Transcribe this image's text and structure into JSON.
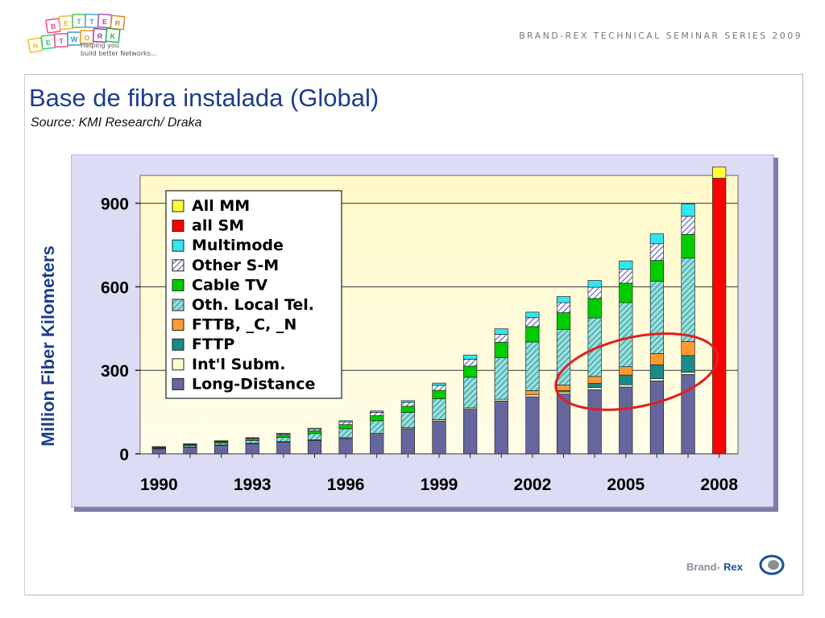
{
  "header": {
    "series_title": "BRAND-REX TECHNICAL SEMINAR SERIES 2009",
    "logo_letters": [
      "B",
      "E",
      "T",
      "T",
      "E",
      "R",
      "N",
      "E",
      "T",
      "W",
      "O",
      "R",
      "K"
    ],
    "tagline_1": "Helping you",
    "tagline_2": "build better Networks...",
    "brand_prefix": "Brand-",
    "brand_suffix": "Rex"
  },
  "slide": {
    "title": "Base de fibra instalada (Global)",
    "subtitle": "Source: KMI Research/ Draka"
  },
  "colors": {
    "title_blue": "#1d3c8c",
    "plot_bg_top": "#fff9c8",
    "plot_bg_bottom": "#fffde9",
    "frame_outer": "#dcdcf4",
    "annotation_ellipse": "#e02020"
  },
  "chart_data": {
    "type": "bar",
    "stacked": true,
    "ylabel": "Million Fiber Kilometers",
    "ylim": [
      0,
      1000
    ],
    "yticks": [
      0,
      300,
      600,
      900
    ],
    "x": [
      1990,
      1991,
      1992,
      1993,
      1994,
      1995,
      1996,
      1997,
      1998,
      1999,
      2000,
      2001,
      2002,
      2003,
      2004,
      2005,
      2006,
      2007,
      2008
    ],
    "xticks": [
      1990,
      1993,
      1996,
      1999,
      2002,
      2005,
      2008
    ],
    "grid": "horizontal",
    "legend_position": "top-left",
    "series": [
      {
        "name": "Long-Distance",
        "color": "#66669e",
        "pattern": "solid",
        "values": [
          18,
          24,
          30,
          36,
          42,
          48,
          55,
          70,
          90,
          118,
          160,
          190,
          205,
          215,
          230,
          240,
          262,
          285,
          0
        ]
      },
      {
        "name": "Int'l Subm.",
        "color": "#ffffcc",
        "pattern": "solid",
        "values": [
          1,
          1,
          2,
          2,
          2,
          3,
          3,
          4,
          4,
          5,
          5,
          6,
          7,
          7,
          8,
          8,
          8,
          8,
          0
        ]
      },
      {
        "name": "FTTP",
        "color": "#1a8a8a",
        "pattern": "solid",
        "values": [
          0,
          0,
          0,
          0,
          0,
          0,
          0,
          0,
          0,
          0,
          0,
          0,
          0,
          5,
          15,
          35,
          50,
          60,
          0
        ]
      },
      {
        "name": "FTTB, _C, _N",
        "color": "#ff9933",
        "pattern": "solid",
        "values": [
          0,
          0,
          0,
          0,
          0,
          0,
          0,
          0,
          0,
          0,
          0,
          0,
          15,
          20,
          25,
          30,
          40,
          50,
          0
        ]
      },
      {
        "name": "Oth. Local Tel.",
        "color": "#33b0b0",
        "pattern": "hatched",
        "values": [
          3,
          5,
          7,
          10,
          15,
          22,
          32,
          45,
          55,
          75,
          110,
          150,
          175,
          200,
          210,
          230,
          260,
          300,
          0
        ]
      },
      {
        "name": "Cable TV",
        "color": "#00cc00",
        "pattern": "solid",
        "values": [
          2,
          3,
          4,
          5,
          8,
          10,
          15,
          18,
          22,
          30,
          40,
          55,
          55,
          60,
          70,
          70,
          75,
          85,
          0
        ]
      },
      {
        "name": "Other S-M",
        "color": "#6a68cc",
        "pattern": "hatched",
        "values": [
          0,
          1,
          2,
          3,
          4,
          6,
          10,
          12,
          14,
          18,
          25,
          28,
          32,
          36,
          40,
          50,
          60,
          65,
          0
        ]
      },
      {
        "name": "Multimode",
        "color": "#33e5f0",
        "pattern": "solid",
        "values": [
          2,
          2,
          2,
          2,
          3,
          3,
          4,
          5,
          6,
          8,
          15,
          20,
          20,
          22,
          25,
          30,
          35,
          45,
          0
        ]
      },
      {
        "name": "all SM",
        "color": "#ff0000",
        "pattern": "solid",
        "values": [
          0,
          0,
          0,
          0,
          0,
          0,
          0,
          0,
          0,
          0,
          0,
          0,
          0,
          0,
          0,
          0,
          0,
          0,
          990
        ]
      },
      {
        "name": "All MM",
        "color": "#ffff33",
        "pattern": "solid",
        "values": [
          0,
          0,
          0,
          0,
          0,
          0,
          0,
          0,
          0,
          0,
          0,
          0,
          0,
          0,
          0,
          0,
          0,
          0,
          40
        ]
      }
    ],
    "legend_order": [
      "All MM",
      "all SM",
      "Multimode",
      "Other S-M",
      "Cable TV",
      "Oth. Local Tel.",
      "FTTB, _C, _N",
      "FTTP",
      "Int'l Subm.",
      "Long-Distance"
    ],
    "annotation": {
      "type": "ellipse",
      "covers_years": [
        2004,
        2007
      ],
      "value_range": [
        170,
        420
      ]
    }
  }
}
